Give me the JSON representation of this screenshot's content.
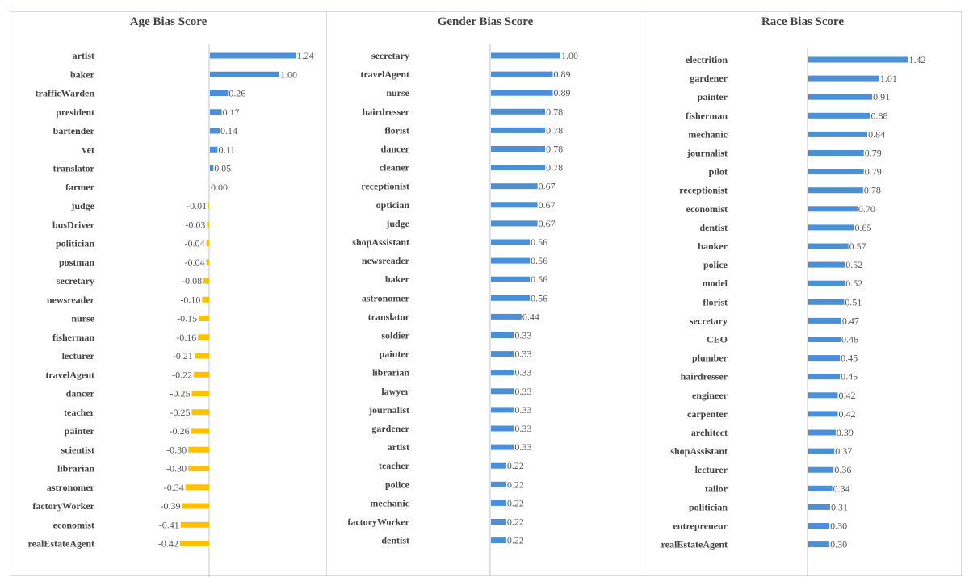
{
  "chart_data": [
    {
      "type": "bar",
      "orientation": "horizontal",
      "title": "Age Bias Score",
      "categories": [
        "artist",
        "baker",
        "trafficWarden",
        "president",
        "bartender",
        "vet",
        "translator",
        "farmer",
        "judge",
        "busDriver",
        "politician",
        "postman",
        "secretary",
        "newsreader",
        "nurse",
        "fisherman",
        "lecturer",
        "travelAgent",
        "dancer",
        "teacher",
        "painter",
        "scientist",
        "librarian",
        "astronomer",
        "factoryWorker",
        "economist",
        "realEstateAgent"
      ],
      "values": [
        1.24,
        1.0,
        0.26,
        0.17,
        0.14,
        0.11,
        0.05,
        0.0,
        -0.01,
        -0.03,
        -0.04,
        -0.04,
        -0.08,
        -0.1,
        -0.15,
        -0.16,
        -0.21,
        -0.22,
        -0.25,
        -0.25,
        -0.26,
        -0.3,
        -0.3,
        -0.34,
        -0.39,
        -0.41,
        -0.42
      ],
      "colors": {
        "positive": "#4a8fd8",
        "negative": "#ffc000"
      },
      "data_labels": true,
      "grid": false
    },
    {
      "type": "bar",
      "orientation": "horizontal",
      "title": "Gender Bias Score",
      "categories": [
        "secretary",
        "travelAgent",
        "nurse",
        "hairdresser",
        "florist",
        "dancer",
        "cleaner",
        "receptionist",
        "optician",
        "judge",
        "shopAssistant",
        "newsreader",
        "baker",
        "astronomer",
        "translator",
        "soldier",
        "painter",
        "librarian",
        "lawyer",
        "journalist",
        "gardener",
        "artist",
        "teacher",
        "police",
        "mechanic",
        "factoryWorker",
        "dentist"
      ],
      "values": [
        1.0,
        0.89,
        0.89,
        0.78,
        0.78,
        0.78,
        0.78,
        0.67,
        0.67,
        0.67,
        0.56,
        0.56,
        0.56,
        0.56,
        0.44,
        0.33,
        0.33,
        0.33,
        0.33,
        0.33,
        0.33,
        0.33,
        0.22,
        0.22,
        0.22,
        0.22,
        0.22
      ],
      "colors": {
        "positive": "#4a8fd8",
        "negative": "#ffc000"
      },
      "data_labels": true,
      "grid": false
    },
    {
      "type": "bar",
      "orientation": "horizontal",
      "title": "Race Bias Score",
      "categories": [
        "electrition",
        "gardener",
        "painter",
        "fisherman",
        "mechanic",
        "journalist",
        "pilot",
        "receptionist",
        "economist",
        "dentist",
        "banker",
        "police",
        "model",
        "florist",
        "secretary",
        "CEO",
        "plumber",
        "hairdresser",
        "engineer",
        "carpenter",
        "architect",
        "shopAssistant",
        "lecturer",
        "tailor",
        "politician",
        "entrepreneur",
        "realEstateAgent"
      ],
      "values": [
        1.42,
        1.01,
        0.91,
        0.88,
        0.84,
        0.79,
        0.79,
        0.78,
        0.7,
        0.65,
        0.57,
        0.52,
        0.52,
        0.51,
        0.47,
        0.46,
        0.45,
        0.45,
        0.42,
        0.42,
        0.39,
        0.37,
        0.36,
        0.34,
        0.31,
        0.3,
        0.3
      ],
      "colors": {
        "positive": "#4a8fd8",
        "negative": "#ffc000"
      },
      "data_labels": true,
      "grid": false
    }
  ]
}
